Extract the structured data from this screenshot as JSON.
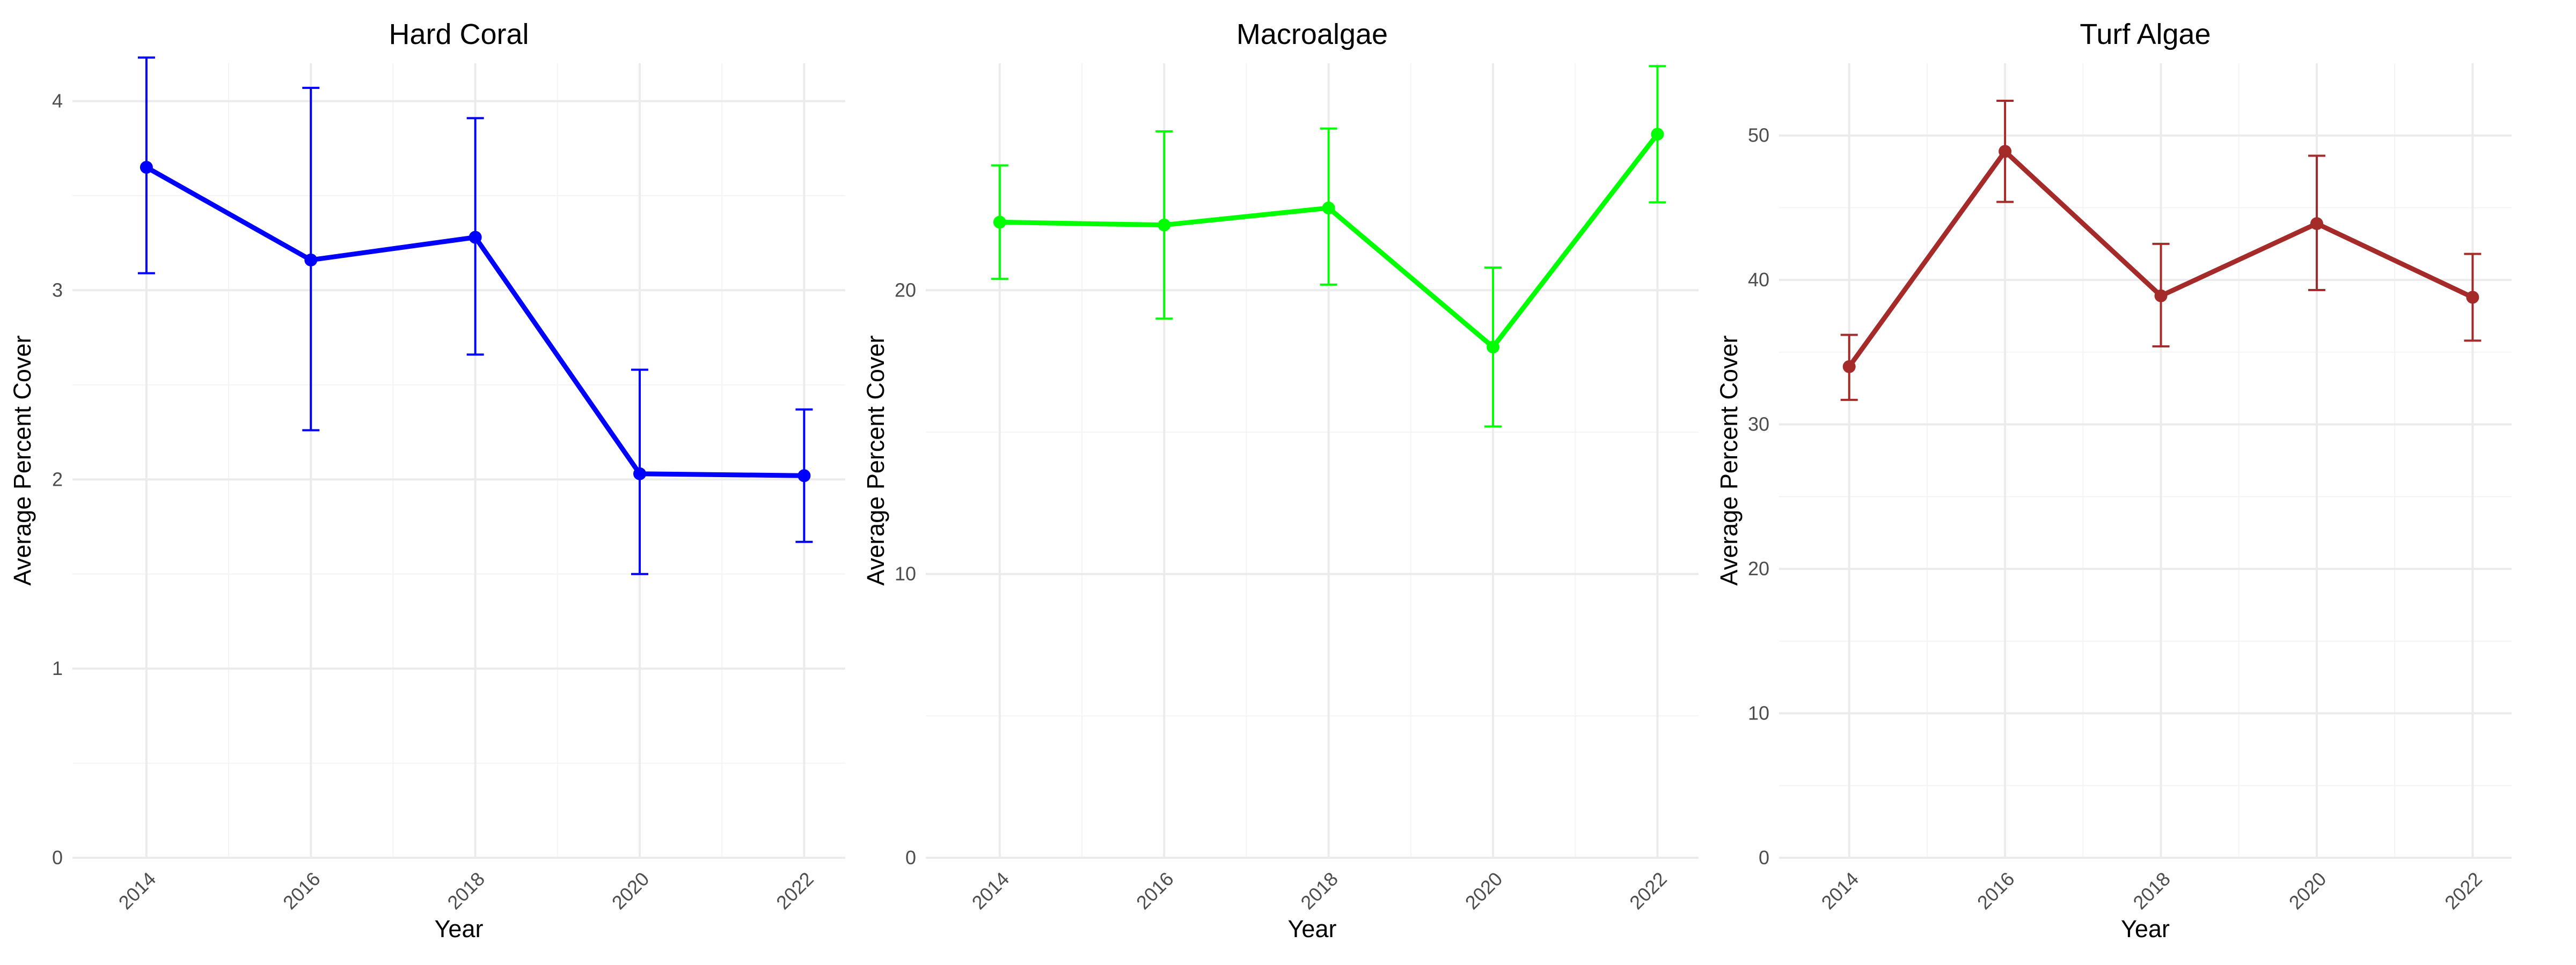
{
  "chart_data": [
    {
      "type": "line",
      "title": "Hard Coral",
      "xlabel": "Year",
      "ylabel": "Average Percent Cover",
      "color": "#0000ff",
      "x": [
        2014,
        2016,
        2018,
        2020,
        2022
      ],
      "x_ticks": [
        "2014",
        "2016",
        "2018",
        "2020",
        "2022"
      ],
      "xlim": [
        2013.1,
        2022.5
      ],
      "ylim": [
        0,
        4.2
      ],
      "y_ticks": [
        0,
        1,
        2,
        3,
        4
      ],
      "y_tick_labels": [
        "0",
        "1",
        "2",
        "3",
        "4"
      ],
      "grid": true,
      "series": [
        {
          "values": [
            3.65,
            3.16,
            3.28,
            2.03,
            2.02
          ],
          "error_low": [
            3.09,
            2.26,
            2.66,
            1.5,
            1.67
          ],
          "error_high": [
            4.23,
            4.07,
            3.91,
            2.58,
            2.37
          ]
        }
      ]
    },
    {
      "type": "line",
      "title": "Macroalgae",
      "xlabel": "Year",
      "ylabel": "Average Percent Cover",
      "color": "#00ff00",
      "x": [
        2014,
        2016,
        2018,
        2020,
        2022
      ],
      "x_ticks": [
        "2014",
        "2016",
        "2018",
        "2020",
        "2022"
      ],
      "xlim": [
        2013.1,
        2022.5
      ],
      "ylim": [
        0,
        28
      ],
      "y_ticks": [
        0,
        10,
        20
      ],
      "y_tick_labels": [
        "0",
        "10",
        "20"
      ],
      "grid": true,
      "series": [
        {
          "values": [
            22.4,
            22.3,
            22.9,
            18.0,
            25.5
          ],
          "error_low": [
            20.4,
            19.0,
            20.2,
            15.2,
            23.1
          ],
          "error_high": [
            24.4,
            25.6,
            25.7,
            20.8,
            27.9
          ]
        }
      ]
    },
    {
      "type": "line",
      "title": "Turf Algae",
      "xlabel": "Year",
      "ylabel": "Average Percent Cover",
      "color": "#a52a2a",
      "x": [
        2014,
        2016,
        2018,
        2020,
        2022
      ],
      "x_ticks": [
        "2014",
        "2016",
        "2018",
        "2020",
        "2022"
      ],
      "xlim": [
        2013.1,
        2022.5
      ],
      "ylim": [
        0,
        55
      ],
      "y_ticks": [
        0,
        10,
        20,
        30,
        40,
        50
      ],
      "y_tick_labels": [
        "0",
        "10",
        "20",
        "30",
        "40",
        "50"
      ],
      "grid": true,
      "series": [
        {
          "values": [
            34.0,
            48.9,
            38.9,
            43.9,
            38.8
          ],
          "error_low": [
            31.7,
            45.4,
            35.4,
            39.3,
            35.8
          ],
          "error_high": [
            36.2,
            52.4,
            42.5,
            48.6,
            41.8
          ]
        }
      ]
    }
  ]
}
